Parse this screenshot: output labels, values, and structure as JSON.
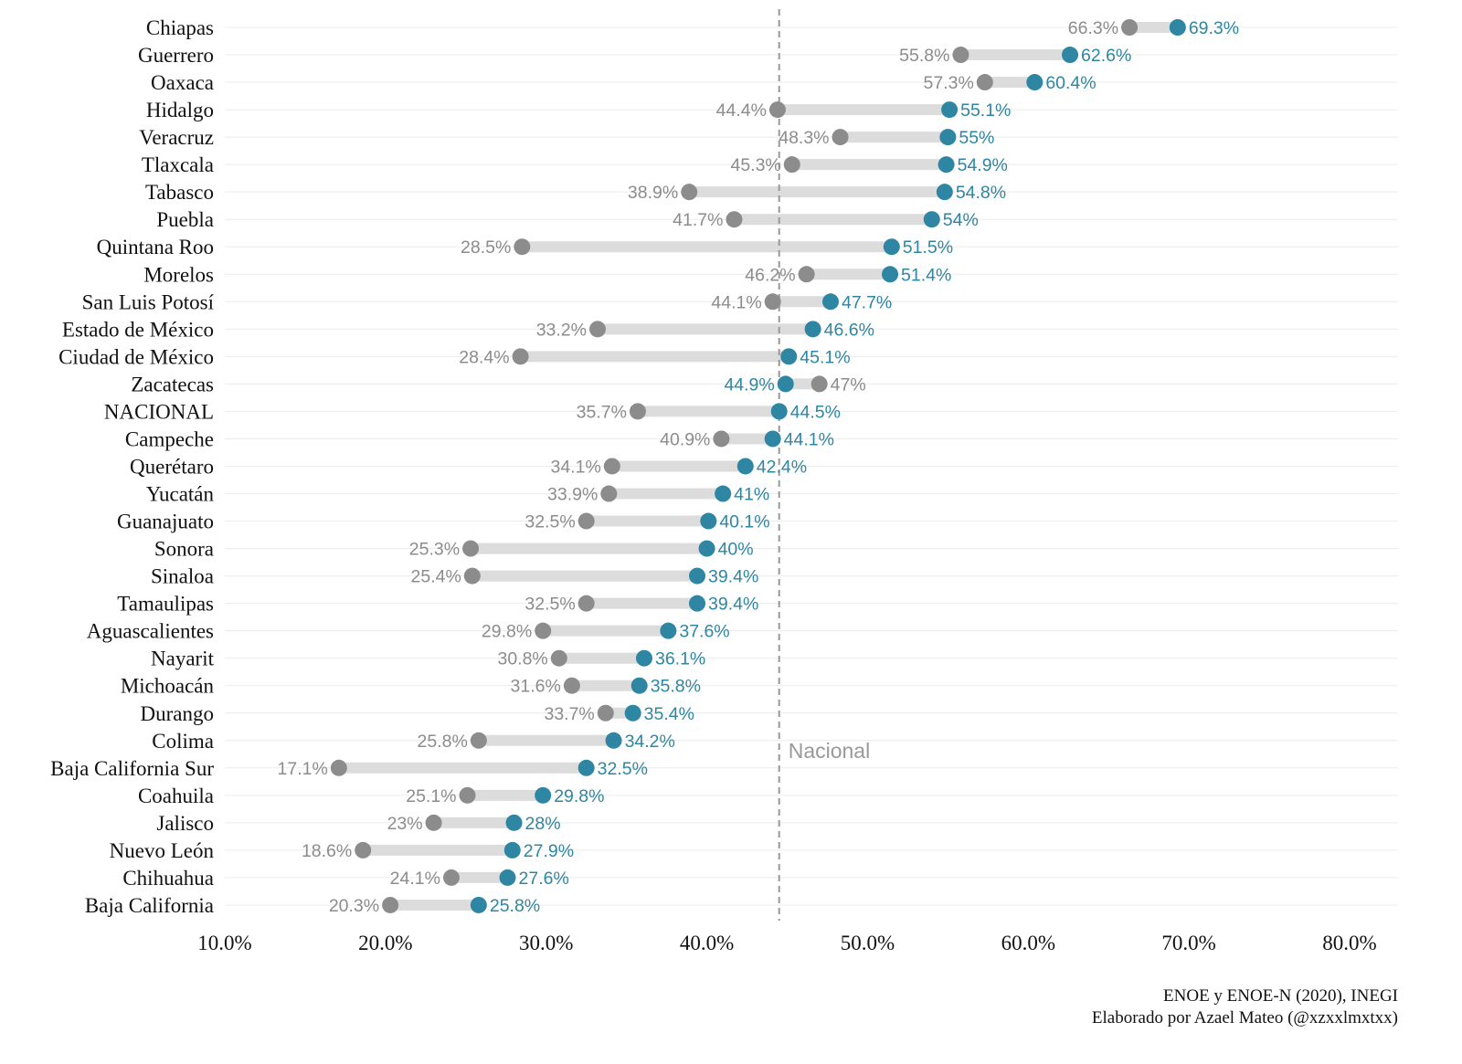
{
  "chart_data": {
    "type": "dumbbell",
    "title": "",
    "xlabel": "",
    "ylabel": "",
    "xlim": [
      10,
      80
    ],
    "x_ticks": [
      "10.0%",
      "20.0%",
      "30.0%",
      "40.0%",
      "50.0%",
      "60.0%",
      "70.0%",
      "80.0%"
    ],
    "x_tick_values": [
      10,
      20,
      30,
      40,
      50,
      60,
      70,
      80
    ],
    "grid": "horizontal",
    "legend": "none",
    "colors": {
      "gray_point": "#8c8c8c",
      "blue_point": "#2e86a3",
      "segment": "#dcdcdc",
      "reference_line": "#999999"
    },
    "reference_line": {
      "value": 44.5,
      "label": "Nacional"
    },
    "categories": [
      "Chiapas",
      "Guerrero",
      "Oaxaca",
      "Hidalgo",
      "Veracruz",
      "Tlaxcala",
      "Tabasco",
      "Puebla",
      "Quintana Roo",
      "Morelos",
      "San Luis Potosí",
      "Estado de México",
      "Ciudad de México",
      "Zacatecas",
      "NACIONAL",
      "Campeche",
      "Querétaro",
      "Yucatán",
      "Guanajuato",
      "Sonora",
      "Sinaloa",
      "Tamaulipas",
      "Aguascalientes",
      "Nayarit",
      "Michoacán",
      "Durango",
      "Colima",
      "Baja California Sur",
      "Coahuila",
      "Jalisco",
      "Nuevo León",
      "Chihuahua",
      "Baja California"
    ],
    "series": [
      {
        "values": [
          66.3,
          55.8,
          57.3,
          44.4,
          48.3,
          45.3,
          38.9,
          41.7,
          28.5,
          46.2,
          44.1,
          33.2,
          28.4,
          47,
          35.7,
          40.9,
          34.1,
          33.9,
          32.5,
          25.3,
          25.4,
          32.5,
          29.8,
          30.8,
          31.6,
          33.7,
          25.8,
          17.1,
          25.1,
          23,
          18.6,
          24.1,
          20.3
        ]
      },
      {
        "values": [
          69.3,
          62.6,
          60.4,
          55.1,
          55,
          54.9,
          54.8,
          54,
          51.5,
          51.4,
          47.7,
          46.6,
          45.1,
          44.9,
          44.5,
          44.1,
          42.4,
          41,
          40.1,
          40,
          39.4,
          39.4,
          37.6,
          36.1,
          35.8,
          35.4,
          34.2,
          32.5,
          29.8,
          28,
          27.9,
          27.6,
          25.8
        ]
      }
    ]
  },
  "caption": {
    "source": "ENOE y ENOE-N (2020), INEGI",
    "author": "Elaborado por Azael Mateo (@xzxxlmxtxx)"
  }
}
